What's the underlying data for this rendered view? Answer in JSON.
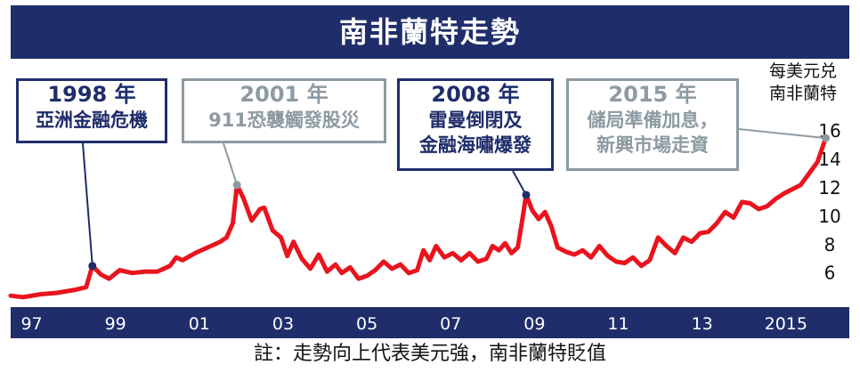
{
  "title": "南非蘭特走勢",
  "unit_label": [
    "每美元兑",
    "南非蘭特"
  ],
  "footnote": "註：走勢向上代表美元強，南非蘭特貶值",
  "colors": {
    "title_bg": "#1f2d6b",
    "line": "#e8141e",
    "axis_bar": "#1f2d6b",
    "callout_dark": "#1f2d6b",
    "callout_light": "#8d9aa2",
    "marker_dark": "#1f2d6b",
    "marker_light": "#8d9aa2"
  },
  "callouts": [
    {
      "id": "1998",
      "year": "1998 年",
      "lines": [
        "亞洲金融危機"
      ],
      "style": "dark",
      "marker": {
        "x": 1998.45,
        "y": 6.5
      }
    },
    {
      "id": "2001",
      "year": "2001 年",
      "lines": [
        "911恐襲觸發股災"
      ],
      "style": "light",
      "marker": {
        "x": 2001.9,
        "y": 12.2
      }
    },
    {
      "id": "2008",
      "year": "2008 年",
      "lines": [
        "雷曼倒閉及",
        "金融海嘯爆發"
      ],
      "style": "dark",
      "marker": {
        "x": 2008.8,
        "y": 11.5
      }
    },
    {
      "id": "2015",
      "year": "2015 年",
      "lines": [
        "儲局準備加息，",
        "新興市場走資"
      ],
      "style": "light",
      "marker": {
        "x": 2015.95,
        "y": 15.5
      }
    }
  ],
  "chart_data": {
    "type": "line",
    "title": "南非蘭特走勢",
    "ylabel": "每美元兑南非蘭特",
    "xlim": [
      1996.5,
      2016.3
    ],
    "ylim": [
      3.6,
      17.2
    ],
    "yticks": [
      6,
      8,
      10,
      12,
      14,
      16
    ],
    "xticks": [
      {
        "x": 1997,
        "label": "97"
      },
      {
        "x": 1999,
        "label": "99"
      },
      {
        "x": 2001,
        "label": "01"
      },
      {
        "x": 2003,
        "label": "03"
      },
      {
        "x": 2005,
        "label": "05"
      },
      {
        "x": 2007,
        "label": "07"
      },
      {
        "x": 2009,
        "label": "09"
      },
      {
        "x": 2011,
        "label": "11"
      },
      {
        "x": 2013,
        "label": "13"
      },
      {
        "x": 2015,
        "label": "2015"
      }
    ],
    "grid": false,
    "series": [
      {
        "points": [
          [
            1996.5,
            4.4
          ],
          [
            1996.8,
            4.3
          ],
          [
            1997.2,
            4.5
          ],
          [
            1997.6,
            4.6
          ],
          [
            1998.0,
            4.8
          ],
          [
            1998.3,
            5.0
          ],
          [
            1998.45,
            6.5
          ],
          [
            1998.65,
            5.9
          ],
          [
            1998.85,
            5.6
          ],
          [
            1999.1,
            6.2
          ],
          [
            1999.4,
            6.0
          ],
          [
            1999.7,
            6.1
          ],
          [
            2000.0,
            6.1
          ],
          [
            2000.3,
            6.5
          ],
          [
            2000.45,
            7.1
          ],
          [
            2000.6,
            6.9
          ],
          [
            2000.9,
            7.4
          ],
          [
            2001.2,
            7.8
          ],
          [
            2001.5,
            8.2
          ],
          [
            2001.65,
            8.5
          ],
          [
            2001.8,
            9.5
          ],
          [
            2001.9,
            12.2
          ],
          [
            2002.05,
            11.3
          ],
          [
            2002.25,
            9.7
          ],
          [
            2002.45,
            10.5
          ],
          [
            2002.55,
            10.6
          ],
          [
            2002.75,
            9.0
          ],
          [
            2002.95,
            8.5
          ],
          [
            2003.1,
            7.2
          ],
          [
            2003.25,
            8.2
          ],
          [
            2003.45,
            7.0
          ],
          [
            2003.65,
            6.3
          ],
          [
            2003.85,
            7.3
          ],
          [
            2004.05,
            6.1
          ],
          [
            2004.25,
            6.6
          ],
          [
            2004.4,
            6.0
          ],
          [
            2004.6,
            6.4
          ],
          [
            2004.8,
            5.6
          ],
          [
            2005.0,
            5.8
          ],
          [
            2005.2,
            6.2
          ],
          [
            2005.4,
            6.8
          ],
          [
            2005.6,
            6.3
          ],
          [
            2005.8,
            6.6
          ],
          [
            2006.0,
            6.0
          ],
          [
            2006.2,
            6.2
          ],
          [
            2006.35,
            7.6
          ],
          [
            2006.5,
            6.9
          ],
          [
            2006.65,
            7.9
          ],
          [
            2006.85,
            7.1
          ],
          [
            2007.05,
            7.4
          ],
          [
            2007.25,
            6.9
          ],
          [
            2007.45,
            7.4
          ],
          [
            2007.65,
            6.8
          ],
          [
            2007.85,
            7.0
          ],
          [
            2008.0,
            7.9
          ],
          [
            2008.15,
            7.6
          ],
          [
            2008.3,
            8.1
          ],
          [
            2008.45,
            7.4
          ],
          [
            2008.6,
            7.8
          ],
          [
            2008.7,
            9.6
          ],
          [
            2008.8,
            11.5
          ],
          [
            2008.95,
            10.4
          ],
          [
            2009.1,
            9.8
          ],
          [
            2009.25,
            10.3
          ],
          [
            2009.4,
            9.3
          ],
          [
            2009.55,
            7.8
          ],
          [
            2009.75,
            7.5
          ],
          [
            2009.95,
            7.3
          ],
          [
            2010.15,
            7.6
          ],
          [
            2010.35,
            7.1
          ],
          [
            2010.55,
            7.9
          ],
          [
            2010.75,
            7.2
          ],
          [
            2010.95,
            6.8
          ],
          [
            2011.15,
            6.7
          ],
          [
            2011.35,
            7.1
          ],
          [
            2011.55,
            6.5
          ],
          [
            2011.75,
            6.9
          ],
          [
            2011.95,
            8.5
          ],
          [
            2012.15,
            7.9
          ],
          [
            2012.35,
            7.4
          ],
          [
            2012.55,
            8.5
          ],
          [
            2012.75,
            8.2
          ],
          [
            2012.95,
            8.8
          ],
          [
            2013.15,
            8.9
          ],
          [
            2013.35,
            9.5
          ],
          [
            2013.55,
            10.3
          ],
          [
            2013.75,
            9.9
          ],
          [
            2013.95,
            11.0
          ],
          [
            2014.15,
            10.9
          ],
          [
            2014.35,
            10.5
          ],
          [
            2014.55,
            10.7
          ],
          [
            2014.75,
            11.2
          ],
          [
            2014.95,
            11.6
          ],
          [
            2015.15,
            11.9
          ],
          [
            2015.35,
            12.2
          ],
          [
            2015.55,
            13.0
          ],
          [
            2015.75,
            13.8
          ],
          [
            2015.95,
            15.5
          ]
        ]
      }
    ]
  }
}
